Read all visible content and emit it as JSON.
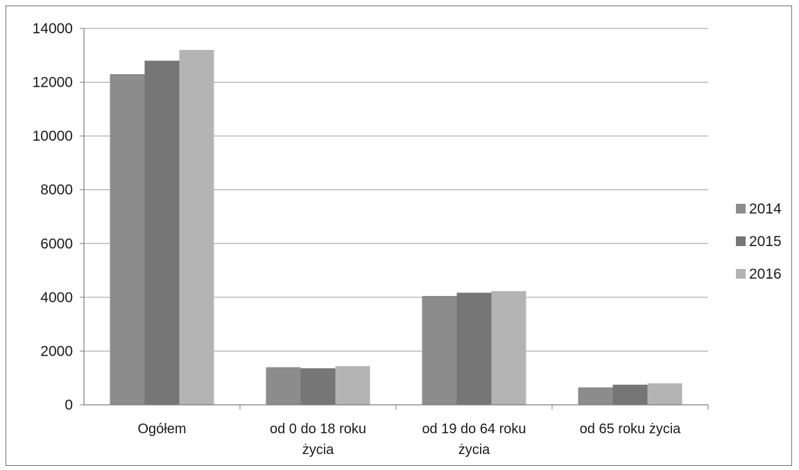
{
  "chart_data": {
    "type": "bar",
    "title": "",
    "xlabel": "",
    "ylabel": "",
    "ylim": [
      0,
      14000
    ],
    "yticks": [
      0,
      2000,
      4000,
      6000,
      8000,
      10000,
      12000,
      14000
    ],
    "grid": true,
    "legend_position": "right",
    "categories": [
      [
        "Ogółem"
      ],
      [
        "od 0 do 18 roku",
        "życia"
      ],
      [
        "od 19 do 64 roku",
        "życia"
      ],
      [
        "od 65 roku życia"
      ]
    ],
    "series": [
      {
        "name": "2014",
        "color": "#8c8c8c",
        "values": [
          12300,
          1400,
          4050,
          650
        ]
      },
      {
        "name": "2015",
        "color": "#767676",
        "values": [
          12800,
          1360,
          4170,
          750
        ]
      },
      {
        "name": "2016",
        "color": "#b4b4b4",
        "values": [
          13200,
          1440,
          4230,
          800
        ]
      }
    ]
  }
}
